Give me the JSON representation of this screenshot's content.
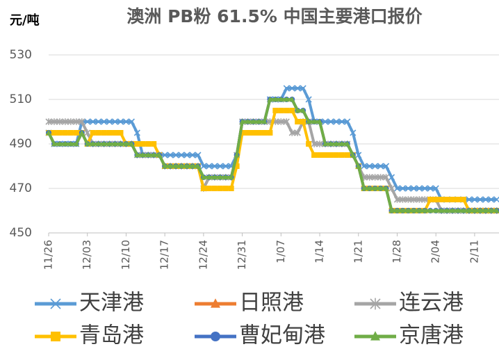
{
  "chart_data": {
    "type": "line",
    "title": "澳洲 PB粉 61.5% 中国主要港口报价",
    "y_label": "元/吨",
    "categories": [
      "11/26",
      null,
      null,
      null,
      null,
      null,
      null,
      "12/03",
      null,
      null,
      null,
      null,
      null,
      null,
      "12/10",
      null,
      null,
      null,
      null,
      null,
      null,
      "12/17",
      null,
      null,
      null,
      null,
      null,
      null,
      "12/24",
      null,
      null,
      null,
      null,
      null,
      null,
      "12/31",
      null,
      null,
      null,
      null,
      null,
      null,
      "1/07",
      null,
      null,
      null,
      null,
      null,
      null,
      "1/14",
      null,
      null,
      null,
      null,
      null,
      null,
      "1/21",
      null,
      null,
      null,
      null,
      null,
      null,
      "1/28",
      null,
      null,
      null,
      null,
      null,
      null,
      "2/04",
      null,
      null,
      null,
      null,
      null,
      null,
      "2/11",
      null,
      null,
      null,
      null
    ],
    "ylim": [
      450,
      530
    ],
    "yticks": [
      450,
      470,
      490,
      510,
      530
    ],
    "grid": true,
    "series": [
      {
        "name": "天津港",
        "color": "#5b9bd5",
        "marker": "x",
        "values": [
          495,
          490,
          490,
          490,
          490,
          490,
          500,
          500,
          500,
          500,
          500,
          500,
          500,
          500,
          500,
          500,
          495,
          485,
          485,
          485,
          485,
          485,
          485,
          485,
          485,
          485,
          485,
          485,
          480,
          480,
          480,
          480,
          480,
          480,
          485,
          500,
          500,
          500,
          500,
          500,
          510,
          510,
          510,
          515,
          515,
          515,
          515,
          510,
          500,
          500,
          500,
          500,
          500,
          500,
          500,
          495,
          485,
          480,
          480,
          480,
          480,
          480,
          475,
          470,
          470,
          470,
          470,
          470,
          470,
          470,
          470,
          465,
          465,
          465,
          465,
          465,
          465,
          465,
          465,
          465,
          465,
          465
        ]
      },
      {
        "name": "日照港",
        "color": "#ed7d31",
        "marker": "triangle",
        "values": [
          495,
          490,
          490,
          490,
          490,
          490,
          495,
          490,
          490,
          490,
          490,
          490,
          490,
          490,
          490,
          490,
          485,
          485,
          485,
          485,
          485,
          480,
          480,
          480,
          480,
          480,
          480,
          480,
          470,
          475,
          475,
          475,
          475,
          475,
          485,
          500,
          500,
          500,
          500,
          500,
          510,
          510,
          510,
          510,
          510,
          505,
          505,
          500,
          500,
          500,
          490,
          490,
          490,
          490,
          490,
          485,
          480,
          470,
          470,
          470,
          470,
          470,
          460,
          460,
          460,
          460,
          460,
          460,
          460,
          460,
          460,
          460,
          460,
          460,
          460,
          460,
          460,
          460,
          460,
          460,
          460,
          460
        ]
      },
      {
        "name": "连云港",
        "color": "#a5a5a5",
        "marker": "star",
        "values": [
          500,
          500,
          500,
          500,
          500,
          500,
          500,
          495,
          490,
          490,
          490,
          490,
          490,
          490,
          490,
          490,
          485,
          485,
          485,
          485,
          485,
          480,
          480,
          480,
          480,
          480,
          480,
          480,
          470,
          475,
          475,
          475,
          475,
          475,
          485,
          500,
          500,
          500,
          500,
          500,
          500,
          500,
          500,
          500,
          495,
          495,
          500,
          500,
          490,
          490,
          490,
          490,
          490,
          490,
          490,
          485,
          480,
          475,
          475,
          475,
          475,
          475,
          470,
          465,
          465,
          465,
          465,
          465,
          465,
          465,
          465,
          460,
          460,
          460,
          460,
          460,
          460,
          460,
          460,
          460,
          460,
          460
        ]
      },
      {
        "name": "青岛港",
        "color": "#ffc000",
        "marker": "square",
        "values": [
          495,
          495,
          495,
          495,
          495,
          495,
          495,
          490,
          495,
          495,
          495,
          495,
          495,
          495,
          490,
          490,
          490,
          490,
          490,
          490,
          485,
          480,
          480,
          480,
          480,
          480,
          480,
          480,
          470,
          470,
          470,
          470,
          470,
          470,
          480,
          495,
          495,
          495,
          495,
          495,
          495,
          505,
          505,
          505,
          505,
          500,
          500,
          490,
          485,
          485,
          485,
          485,
          485,
          485,
          485,
          485,
          480,
          470,
          470,
          470,
          470,
          470,
          460,
          460,
          460,
          460,
          460,
          460,
          460,
          465,
          465,
          465,
          465,
          465,
          465,
          465,
          460,
          460,
          460,
          460,
          460,
          460
        ]
      },
      {
        "name": "曹妃甸港",
        "color": "#4472c4",
        "marker": "circle",
        "values": [
          495,
          490,
          490,
          490,
          490,
          490,
          495,
          490,
          490,
          490,
          490,
          490,
          490,
          490,
          490,
          490,
          485,
          485,
          485,
          485,
          485,
          480,
          480,
          480,
          480,
          480,
          480,
          480,
          475,
          475,
          475,
          475,
          475,
          475,
          485,
          500,
          500,
          500,
          500,
          500,
          510,
          510,
          510,
          510,
          510,
          505,
          505,
          500,
          500,
          500,
          490,
          490,
          490,
          490,
          490,
          485,
          480,
          470,
          470,
          470,
          470,
          470,
          460,
          460,
          460,
          460,
          460,
          460,
          460,
          460,
          460,
          460,
          460,
          460,
          460,
          460,
          460,
          460,
          460,
          460,
          460,
          460
        ]
      },
      {
        "name": "京唐港",
        "color": "#70ad47",
        "marker": "triangle",
        "values": [
          495,
          490,
          490,
          490,
          490,
          490,
          495,
          490,
          490,
          490,
          490,
          490,
          490,
          490,
          490,
          490,
          485,
          485,
          485,
          485,
          485,
          480,
          480,
          480,
          480,
          480,
          480,
          480,
          475,
          475,
          475,
          475,
          475,
          475,
          485,
          500,
          500,
          500,
          500,
          500,
          510,
          510,
          510,
          510,
          510,
          505,
          505,
          500,
          500,
          500,
          490,
          490,
          490,
          490,
          490,
          485,
          480,
          470,
          470,
          470,
          470,
          470,
          460,
          460,
          460,
          460,
          460,
          460,
          460,
          460,
          460,
          460,
          460,
          460,
          460,
          460,
          460,
          460,
          460,
          460,
          460,
          460
        ]
      }
    ]
  }
}
